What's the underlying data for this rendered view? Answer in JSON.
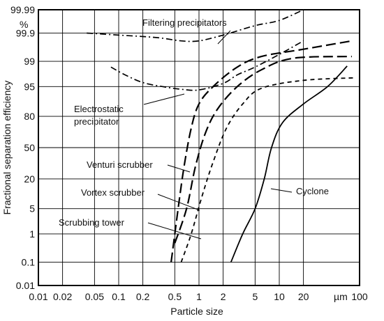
{
  "chart_data": {
    "type": "line",
    "xlabel": "Particle size",
    "ylabel": "Fractional separation efficiency",
    "x_unit": "µm",
    "y_unit": "%",
    "x_scale": "log",
    "y_scale": "probability",
    "xlim": [
      0.01,
      100
    ],
    "ylim": [
      0.01,
      99.99
    ],
    "x_ticks": [
      0.01,
      0.02,
      0.05,
      0.1,
      0.2,
      0.5,
      1,
      2,
      5,
      10,
      20,
      100
    ],
    "x_tick_labels": [
      "0.01",
      "0.02",
      "0.05",
      "0.1",
      "0.2",
      "0.5",
      "1",
      "2",
      "5",
      "10",
      "20",
      "100"
    ],
    "y_ticks": [
      0.01,
      0.1,
      1,
      5,
      20,
      50,
      80,
      95,
      99,
      99.9,
      99.99
    ],
    "y_tick_labels": [
      "0.01",
      "0.1",
      "1",
      "5",
      "20",
      "50",
      "80",
      "95",
      "99",
      "99.9",
      "99.99"
    ],
    "grid": true,
    "series": [
      {
        "name": "Filtering precipitators",
        "dash": "dashdot",
        "points": [
          [
            0.04,
            99.9
          ],
          [
            0.1,
            99.88
          ],
          [
            0.3,
            99.85
          ],
          [
            0.6,
            99.8
          ],
          [
            1,
            99.8
          ],
          [
            2,
            99.88
          ],
          [
            5,
            99.95
          ],
          [
            10,
            99.97
          ],
          [
            20,
            99.99
          ]
        ]
      },
      {
        "name": "Electrostatic precipitator",
        "dash": "dashdot",
        "points": [
          [
            0.08,
            98.5
          ],
          [
            0.12,
            97.5
          ],
          [
            0.2,
            96
          ],
          [
            0.35,
            95
          ],
          [
            0.6,
            94.2
          ],
          [
            1,
            94
          ],
          [
            2,
            95.8
          ],
          [
            3,
            97.5
          ],
          [
            5,
            98.5
          ],
          [
            10,
            99.4
          ],
          [
            20,
            99.8
          ]
        ]
      },
      {
        "name": "Venturi scrubber",
        "dash": "longdash",
        "points": [
          [
            0.45,
            0.1
          ],
          [
            0.55,
            5
          ],
          [
            0.65,
            30
          ],
          [
            0.8,
            70
          ],
          [
            1,
            88
          ],
          [
            1.5,
            95
          ],
          [
            3,
            98.5
          ],
          [
            6,
            99.3
          ],
          [
            20,
            99.6
          ],
          [
            80,
            99.8
          ]
        ]
      },
      {
        "name": "Vortex scrubber",
        "dash": "longdash",
        "points": [
          [
            0.5,
            0.5
          ],
          [
            0.7,
            5
          ],
          [
            0.9,
            30
          ],
          [
            1.2,
            65
          ],
          [
            1.7,
            85
          ],
          [
            3,
            95
          ],
          [
            6,
            98.2
          ],
          [
            15,
            99.2
          ],
          [
            80,
            99.3
          ]
        ]
      },
      {
        "name": "Scrubbing tower",
        "dash": "dashed",
        "points": [
          [
            0.6,
            0.1
          ],
          [
            0.8,
            1
          ],
          [
            1.1,
            10
          ],
          [
            1.5,
            35
          ],
          [
            2.2,
            70
          ],
          [
            3.5,
            88
          ],
          [
            6,
            94.5
          ],
          [
            20,
            96.5
          ],
          [
            90,
            97
          ]
        ]
      },
      {
        "name": "Cyclone",
        "dash": "solid",
        "points": [
          [
            2.5,
            0.1
          ],
          [
            3.5,
            1
          ],
          [
            5,
            5
          ],
          [
            6.5,
            20
          ],
          [
            8,
            50
          ],
          [
            11,
            75
          ],
          [
            20,
            88
          ],
          [
            40,
            95
          ],
          [
            70,
            98.6
          ]
        ]
      }
    ],
    "annotations": {
      "filtering": "Filtering precipitators",
      "electro_line1": "Electrostatic",
      "electro_line2": "precipitator",
      "venturi": "Venturi scrubber",
      "vortex": "Vortex scrubber",
      "tower": "Scrubbing tower",
      "cyclone": "Cyclone",
      "percent": "%",
      "micron": "µm"
    }
  }
}
